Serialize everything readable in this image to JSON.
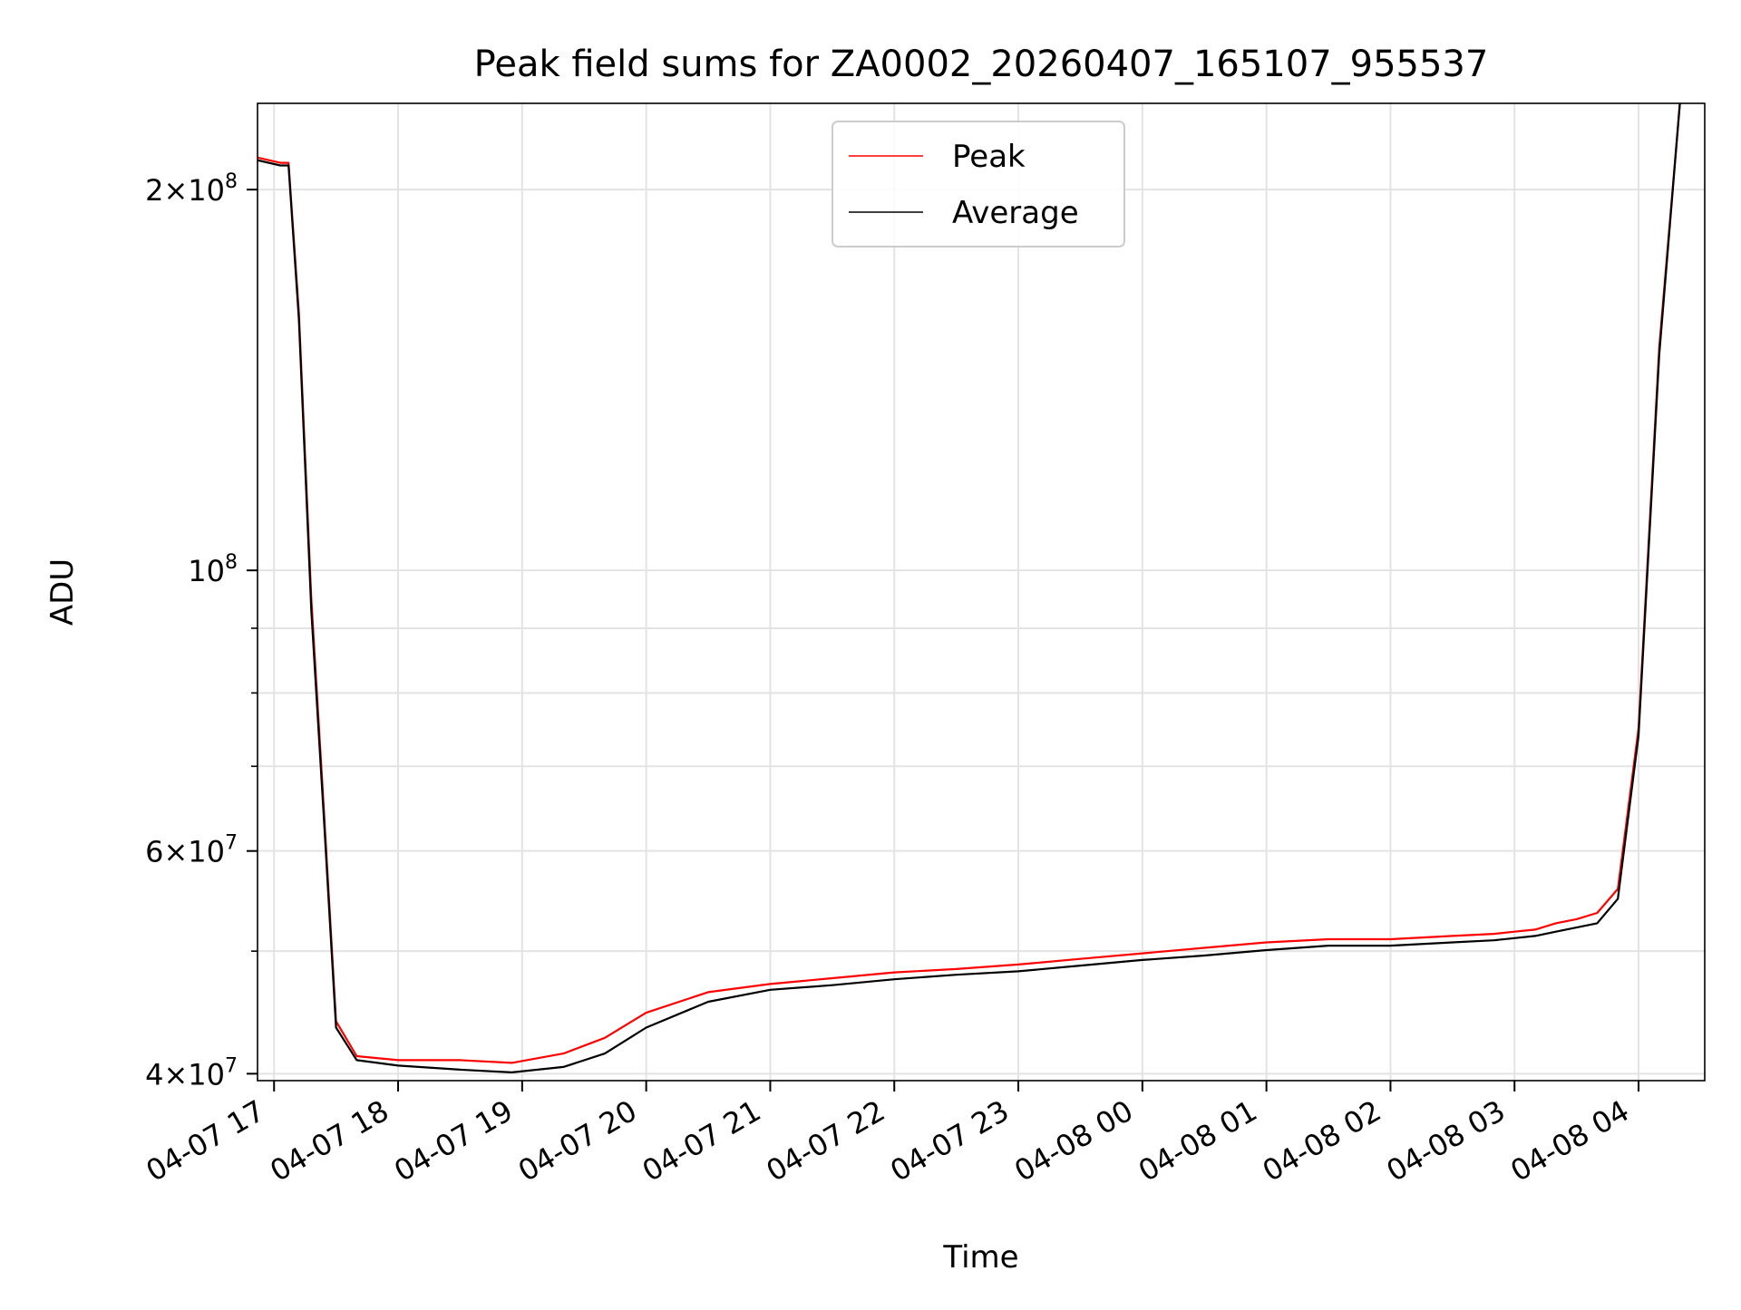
{
  "chart_data": {
    "type": "line",
    "title": "Peak field sums for ZA0002_20260407_165107_955537",
    "xlabel": "Time",
    "ylabel": "ADU",
    "yscale": "log",
    "ylim": [
      39500000,
      234000000
    ],
    "xlim": [
      "2026-04-07 16:52",
      "2026-04-08 04:32"
    ],
    "x_ticks": [
      {
        "t": "2026-04-07 17:00",
        "label": "04-07 17"
      },
      {
        "t": "2026-04-07 18:00",
        "label": "04-07 18"
      },
      {
        "t": "2026-04-07 19:00",
        "label": "04-07 19"
      },
      {
        "t": "2026-04-07 20:00",
        "label": "04-07 20"
      },
      {
        "t": "2026-04-07 21:00",
        "label": "04-07 21"
      },
      {
        "t": "2026-04-07 22:00",
        "label": "04-07 22"
      },
      {
        "t": "2026-04-07 23:00",
        "label": "04-07 23"
      },
      {
        "t": "2026-04-08 00:00",
        "label": "04-08 00"
      },
      {
        "t": "2026-04-08 01:00",
        "label": "04-08 01"
      },
      {
        "t": "2026-04-08 02:00",
        "label": "04-08 02"
      },
      {
        "t": "2026-04-08 03:00",
        "label": "04-08 03"
      },
      {
        "t": "2026-04-08 04:00",
        "label": "04-08 04"
      }
    ],
    "y_ticks": [
      {
        "value": 40000000,
        "label": "4×10",
        "exp": "7"
      },
      {
        "value": 60000000,
        "label": "6×10",
        "exp": "7"
      },
      {
        "value": 100000000,
        "label": "10",
        "exp": "8"
      },
      {
        "value": 200000000,
        "label": "2×10",
        "exp": "8"
      }
    ],
    "y_minor_ticks": [
      50000000,
      70000000,
      80000000,
      90000000
    ],
    "grid": true,
    "legend_position": "top-center",
    "series": [
      {
        "name": "Peak",
        "color": "#ff0000",
        "x": [
          "2026-04-07 16:52",
          "2026-04-07 17:03",
          "2026-04-07 17:07",
          "2026-04-07 17:12",
          "2026-04-07 17:18",
          "2026-04-07 17:24",
          "2026-04-07 17:30",
          "2026-04-07 17:40",
          "2026-04-07 18:00",
          "2026-04-07 18:30",
          "2026-04-07 18:55",
          "2026-04-07 19:20",
          "2026-04-07 19:40",
          "2026-04-07 20:00",
          "2026-04-07 20:30",
          "2026-04-07 21:00",
          "2026-04-07 21:30",
          "2026-04-07 22:00",
          "2026-04-07 22:30",
          "2026-04-07 23:00",
          "2026-04-07 23:30",
          "2026-04-08 00:00",
          "2026-04-08 00:30",
          "2026-04-08 01:00",
          "2026-04-08 01:30",
          "2026-04-08 02:00",
          "2026-04-08 02:30",
          "2026-04-08 02:50",
          "2026-04-08 03:00",
          "2026-04-08 03:10",
          "2026-04-08 03:20",
          "2026-04-08 03:30",
          "2026-04-08 03:40",
          "2026-04-08 03:50",
          "2026-04-08 04:00",
          "2026-04-08 04:10",
          "2026-04-08 04:20"
        ],
        "y": [
          212000000,
          210000000,
          210000000,
          160000000,
          95000000,
          65000000,
          44000000,
          41300000,
          41000000,
          41000000,
          40800000,
          41500000,
          42700000,
          44700000,
          46400000,
          47100000,
          47600000,
          48100000,
          48400000,
          48800000,
          49300000,
          49800000,
          50300000,
          50800000,
          51100000,
          51100000,
          51400000,
          51600000,
          51800000,
          52000000,
          52600000,
          53000000,
          53600000,
          56000000,
          75000000,
          150000000,
          234000000
        ]
      },
      {
        "name": "Average",
        "color": "#000000",
        "x": [
          "2026-04-07 16:52",
          "2026-04-07 17:03",
          "2026-04-07 17:07",
          "2026-04-07 17:12",
          "2026-04-07 17:18",
          "2026-04-07 17:24",
          "2026-04-07 17:30",
          "2026-04-07 17:40",
          "2026-04-07 18:00",
          "2026-04-07 18:30",
          "2026-04-07 18:55",
          "2026-04-07 19:20",
          "2026-04-07 19:40",
          "2026-04-07 20:00",
          "2026-04-07 20:30",
          "2026-04-07 21:00",
          "2026-04-07 21:30",
          "2026-04-07 22:00",
          "2026-04-07 22:30",
          "2026-04-07 23:00",
          "2026-04-07 23:30",
          "2026-04-08 00:00",
          "2026-04-08 00:30",
          "2026-04-08 01:00",
          "2026-04-08 01:30",
          "2026-04-08 02:00",
          "2026-04-08 02:30",
          "2026-04-08 02:50",
          "2026-04-08 03:00",
          "2026-04-08 03:10",
          "2026-04-08 03:20",
          "2026-04-08 03:30",
          "2026-04-08 03:40",
          "2026-04-08 03:50",
          "2026-04-08 04:00",
          "2026-04-08 04:10",
          "2026-04-08 04:20"
        ],
        "y": [
          211000000,
          209000000,
          209000000,
          158000000,
          93000000,
          64000000,
          43500000,
          41000000,
          40600000,
          40300000,
          40100000,
          40500000,
          41500000,
          43500000,
          45600000,
          46600000,
          47000000,
          47500000,
          47900000,
          48200000,
          48700000,
          49200000,
          49600000,
          50100000,
          50500000,
          50500000,
          50800000,
          51000000,
          51200000,
          51400000,
          51800000,
          52200000,
          52600000,
          55000000,
          74000000,
          148000000,
          234000000
        ]
      }
    ]
  }
}
